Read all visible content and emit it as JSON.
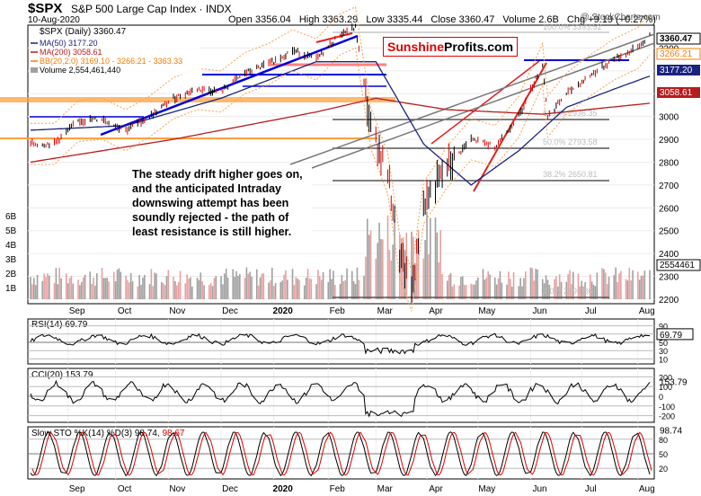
{
  "header": {
    "symbol": "$SPX",
    "name": "S&P 500 Large Cap Index",
    "exchange": "INDX",
    "date": "10-Aug-2020",
    "open_label": "Open",
    "open": "3356.04",
    "high_label": "High",
    "high": "3363.29",
    "low_label": "Low",
    "low": "3335.44",
    "close_label": "Close",
    "close": "3360.47",
    "volume_label": "Volume",
    "volume": "2.6B",
    "chg_label": "Chg",
    "chg": "+9.19 (+0.27%)",
    "watermark": "@ StockCharts.com"
  },
  "legend": {
    "price": "$SPX (Daily) 3360.47",
    "ma50": "MA(50) 3177.20",
    "ma200": "MA(200) 3058.61",
    "bb": "BB(20,2.0) 3169.10 - 3266.21 - 3363.33",
    "volume": "Volume 2,554,461,440"
  },
  "logo": {
    "part1": "Sunshine",
    "part2": "Profits.com"
  },
  "callout": "The steady drift higher goes on, and the anticipated Intraday downswing attempt has been soundly rejected - the path of least resistance is still higher.",
  "fib_labels": [
    "50.0% 2793.58",
    "38.2% 2650.81",
    "61.8% 2936.35",
    "0.0% 2191.86",
    "100.0% 3393.52"
  ],
  "colors": {
    "price_bar": "#000000",
    "ma50": "#1a237e",
    "ma200": "#b71c1c",
    "bb": "#f57c00",
    "volume_up": "#a0a0a0",
    "volume_down": "#e8a0a0",
    "trend_blue": "#0000dd",
    "trend_red": "#e02020",
    "horizontal_orange": "#ffa040",
    "indicator_fill": "#3a6b3a",
    "rsi_fill": "#8b4040"
  },
  "chart_data": {
    "type": "line",
    "title": "$SPX S&P 500 Large Cap Index",
    "x_labels": [
      "Sep",
      "Oct",
      "Nov",
      "Dec",
      "2020",
      "Feb",
      "Mar",
      "Apr",
      "May",
      "Jun",
      "Jul",
      "Aug"
    ],
    "y_ticks": [
      2200,
      2300,
      2400,
      2500,
      2600,
      2700,
      2800,
      2900,
      3000,
      3100,
      3200,
      3300
    ],
    "ylim": [
      2180,
      3400
    ],
    "volume_ticks": [
      "6B",
      "5B",
      "4B",
      "3B",
      "2B",
      "1B"
    ],
    "price_axis_labels": [
      "3360.47",
      "3266.21",
      "3177.20",
      "3058.61"
    ],
    "volume_axis_label": "2554461",
    "price_series": [
      {
        "d": "2019-08-12",
        "c": 2880
      },
      {
        "d": "2019-08-26",
        "c": 2880
      },
      {
        "d": "2019-09-09",
        "c": 2980
      },
      {
        "d": "2019-09-23",
        "c": 2990
      },
      {
        "d": "2019-10-07",
        "c": 2940
      },
      {
        "d": "2019-10-21",
        "c": 3000
      },
      {
        "d": "2019-11-04",
        "c": 3080
      },
      {
        "d": "2019-11-18",
        "c": 3120
      },
      {
        "d": "2019-12-02",
        "c": 3110
      },
      {
        "d": "2019-12-16",
        "c": 3190
      },
      {
        "d": "2019-12-30",
        "c": 3230
      },
      {
        "d": "2020-01-13",
        "c": 3290
      },
      {
        "d": "2020-01-27",
        "c": 3250
      },
      {
        "d": "2020-02-10",
        "c": 3360
      },
      {
        "d": "2020-02-19",
        "c": 3390
      },
      {
        "d": "2020-02-28",
        "c": 2950
      },
      {
        "d": "2020-03-09",
        "c": 2750
      },
      {
        "d": "2020-03-16",
        "c": 2390
      },
      {
        "d": "2020-03-23",
        "c": 2237
      },
      {
        "d": "2020-03-30",
        "c": 2620
      },
      {
        "d": "2020-04-13",
        "c": 2780
      },
      {
        "d": "2020-04-27",
        "c": 2900
      },
      {
        "d": "2020-05-11",
        "c": 2870
      },
      {
        "d": "2020-05-25",
        "c": 3000
      },
      {
        "d": "2020-06-08",
        "c": 3230
      },
      {
        "d": "2020-06-11",
        "c": 3000
      },
      {
        "d": "2020-06-22",
        "c": 3100
      },
      {
        "d": "2020-07-06",
        "c": 3180
      },
      {
        "d": "2020-07-20",
        "c": 3250
      },
      {
        "d": "2020-08-03",
        "c": 3300
      },
      {
        "d": "2020-08-10",
        "c": 3360
      }
    ],
    "ma50_series": [
      {
        "d": "2019-08-12",
        "c": 2940
      },
      {
        "d": "2019-10-07",
        "c": 2960
      },
      {
        "d": "2019-12-02",
        "c": 3080
      },
      {
        "d": "2020-01-27",
        "c": 3240
      },
      {
        "d": "2020-03-02",
        "c": 3240
      },
      {
        "d": "2020-03-30",
        "c": 2880
      },
      {
        "d": "2020-04-27",
        "c": 2700
      },
      {
        "d": "2020-05-25",
        "c": 2850
      },
      {
        "d": "2020-06-22",
        "c": 3040
      },
      {
        "d": "2020-07-20",
        "c": 3120
      },
      {
        "d": "2020-08-10",
        "c": 3177
      }
    ],
    "ma200_series": [
      {
        "d": "2019-08-12",
        "c": 2800
      },
      {
        "d": "2019-11-04",
        "c": 2900
      },
      {
        "d": "2020-01-27",
        "c": 3020
      },
      {
        "d": "2020-03-02",
        "c": 3080
      },
      {
        "d": "2020-04-13",
        "c": 3030
      },
      {
        "d": "2020-06-08",
        "c": 3010
      },
      {
        "d": "2020-08-10",
        "c": 3058
      }
    ],
    "indicators": [
      {
        "name": "RSI(14)",
        "value": "69.79",
        "ticks": [
          90,
          70,
          50,
          30,
          10
        ]
      },
      {
        "name": "CCI(20)",
        "value": "153.79",
        "ticks": [
          200,
          100,
          0,
          -100,
          -200
        ]
      },
      {
        "name": "Slow STO %K(14) %D(3)",
        "value": "98.74",
        "value2": "98.67",
        "ticks": [
          80,
          50,
          20
        ]
      }
    ]
  }
}
